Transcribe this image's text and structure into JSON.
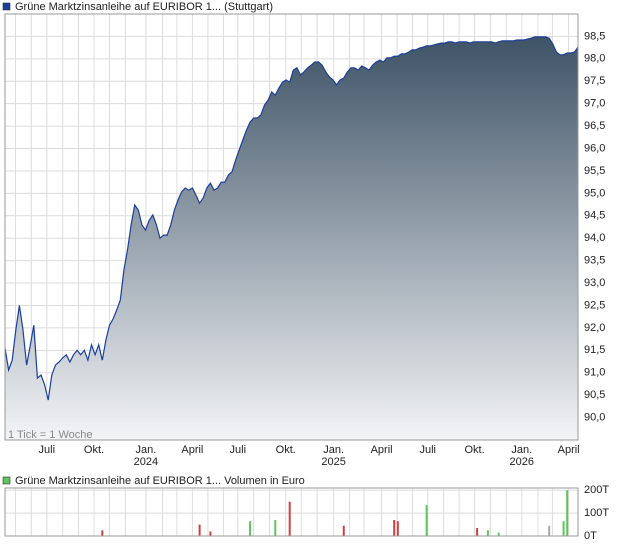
{
  "chart_data": [
    {
      "type": "area",
      "title": "Grüne Marktzinsanleihe auf EURIBOR 1... (Stuttgart)",
      "note": "1 Tick = 1 Woche",
      "legend_color": "#1a3f9a",
      "series": [
        {
          "name": "Grüne Marktzinsanleihe auf EURIBOR 1... (Stuttgart)",
          "color": "#1a3f9a",
          "values": [
            91.55,
            91.06,
            91.28,
            91.95,
            92.5,
            91.95,
            91.17,
            91.6,
            92.06,
            90.88,
            90.95,
            90.73,
            90.39,
            90.95,
            91.17,
            91.24,
            91.33,
            91.4,
            91.24,
            91.4,
            91.5,
            91.4,
            91.5,
            91.28,
            91.62,
            91.4,
            91.62,
            91.28,
            91.73,
            92.06,
            92.2,
            92.4,
            92.62,
            93.29,
            93.74,
            94.3,
            94.74,
            94.63,
            94.3,
            94.18,
            94.4,
            94.52,
            94.3,
            94.0,
            94.07,
            94.07,
            94.3,
            94.63,
            94.85,
            95.03,
            95.12,
            95.07,
            95.12,
            94.96,
            94.78,
            94.9,
            95.12,
            95.23,
            95.07,
            95.12,
            95.25,
            95.25,
            95.41,
            95.48,
            95.74,
            95.97,
            96.19,
            96.41,
            96.59,
            96.68,
            96.68,
            96.75,
            96.97,
            97.08,
            97.26,
            97.19,
            97.35,
            97.48,
            97.53,
            97.48,
            97.75,
            97.8,
            97.64,
            97.71,
            97.8,
            97.86,
            97.93,
            97.93,
            97.86,
            97.71,
            97.6,
            97.53,
            97.42,
            97.53,
            97.57,
            97.71,
            97.8,
            97.8,
            97.75,
            97.84,
            97.8,
            97.75,
            97.86,
            97.93,
            97.97,
            97.93,
            98.02,
            98.02,
            98.06,
            98.06,
            98.11,
            98.11,
            98.15,
            98.2,
            98.2,
            98.24,
            98.26,
            98.29,
            98.29,
            98.31,
            98.33,
            98.35,
            98.35,
            98.38,
            98.38,
            98.35,
            98.38,
            98.38,
            98.38,
            98.35,
            98.38,
            98.38,
            98.38,
            98.38,
            98.38,
            98.38,
            98.35,
            98.38,
            98.4,
            98.4,
            98.4,
            98.4,
            98.42,
            98.42,
            98.42,
            98.44,
            98.46,
            98.49,
            98.49,
            98.49,
            98.49,
            98.46,
            98.33,
            98.15,
            98.09,
            98.09,
            98.13,
            98.13,
            98.15,
            98.26
          ]
        }
      ],
      "xlim": [
        0,
        159
      ],
      "xticks": [
        {
          "value": 11.6,
          "label": "Juli"
        },
        {
          "value": 24.7,
          "label": "Okt."
        },
        {
          "value": 39.1,
          "label": "Jan.",
          "year": "2024"
        },
        {
          "value": 52.0,
          "label": "April"
        },
        {
          "value": 64.6,
          "label": "Juli"
        },
        {
          "value": 77.9,
          "label": "Okt."
        },
        {
          "value": 91.2,
          "label": "Jan.",
          "year": "2025"
        },
        {
          "value": 104.5,
          "label": "April"
        },
        {
          "value": 117.3,
          "label": "Juli"
        },
        {
          "value": 130.3,
          "label": "Okt."
        },
        {
          "value": 143.4,
          "label": "Jan.",
          "year": "2026"
        },
        {
          "value": 156.4,
          "label": "April"
        }
      ],
      "xminorticks": [
        -1.4,
        2.9,
        7.3,
        16.0,
        20.4,
        29.0,
        33.4,
        43.7,
        47.7,
        56.3,
        60.6,
        69.0,
        73.4,
        82.2,
        86.6,
        95.6,
        99.6,
        108.8,
        113.1,
        121.7,
        126.0,
        134.7,
        139.1,
        147.9,
        151.9
      ],
      "ylim": [
        89.5,
        99.0
      ],
      "yticks": [
        {
          "value": 90.0,
          "label": "90,0"
        },
        {
          "value": 90.5,
          "label": "90,5"
        },
        {
          "value": 91.0,
          "label": "91,0"
        },
        {
          "value": 91.5,
          "label": "91,5"
        },
        {
          "value": 92.0,
          "label": "92,0"
        },
        {
          "value": 92.5,
          "label": "92,5"
        },
        {
          "value": 93.0,
          "label": "93,0"
        },
        {
          "value": 93.5,
          "label": "93,5"
        },
        {
          "value": 94.0,
          "label": "94,0"
        },
        {
          "value": 94.5,
          "label": "94,5"
        },
        {
          "value": 95.0,
          "label": "95,0"
        },
        {
          "value": 95.5,
          "label": "95,5"
        },
        {
          "value": 96.0,
          "label": "96,0"
        },
        {
          "value": 96.5,
          "label": "96,5"
        },
        {
          "value": 97.0,
          "label": "97,0"
        },
        {
          "value": 97.5,
          "label": "97,5"
        },
        {
          "value": 98.0,
          "label": "98,0"
        },
        {
          "value": 98.5,
          "label": "98,5"
        }
      ],
      "grid": true
    },
    {
      "type": "bar",
      "title": "Grüne Marktzinsanleihe auf EURIBOR 1... Volumen in Euro",
      "legend_color": "#5ec45e",
      "xlim": [
        0,
        159
      ],
      "x": [
        27,
        54,
        57,
        68,
        75,
        79,
        94,
        108,
        109,
        117,
        131,
        134,
        137,
        151,
        155,
        156
      ],
      "values": [
        25000,
        50000,
        20000,
        65000,
        70000,
        150000,
        45000,
        70000,
        65000,
        135000,
        35000,
        25000,
        15000,
        45000,
        65000,
        200000
      ],
      "colors": [
        "#d04040",
        "#d04040",
        "#d04040",
        "#5ec45e",
        "#5ec45e",
        "#d04040",
        "#d04040",
        "#d04040",
        "#d04040",
        "#5ec45e",
        "#d04040",
        "#5ec45e",
        "#5ec45e",
        "#aaaaaa",
        "#5ec45e",
        "#5ec45e"
      ],
      "ylim": [
        0,
        210000
      ],
      "yticks": [
        {
          "value": 0,
          "label": "0T"
        },
        {
          "value": 100000,
          "label": "100T"
        },
        {
          "value": 200000,
          "label": "200T"
        }
      ],
      "grid": true
    }
  ]
}
